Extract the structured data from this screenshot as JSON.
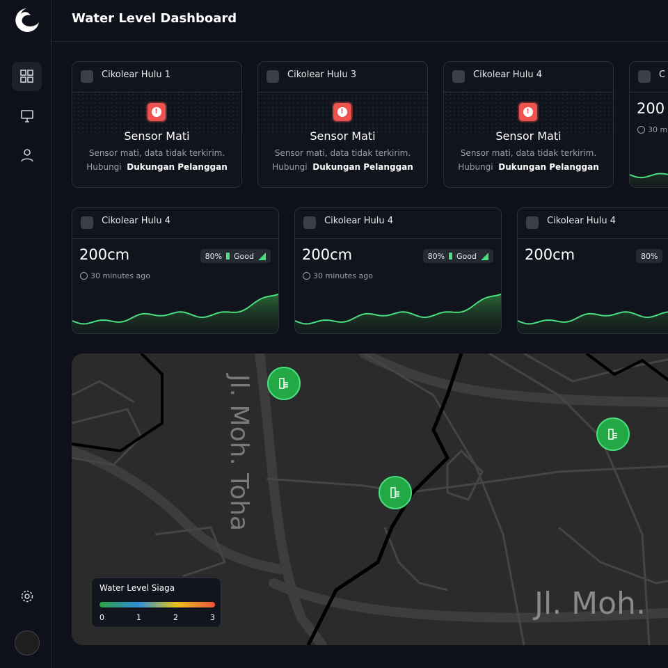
{
  "header": {
    "title": "Water Level Dashboard"
  },
  "row1": [
    {
      "name": "Cikolear Hulu 1",
      "status": "Sensor Mati",
      "message": "Sensor mati, data tidak terkirim.",
      "contact_prefix": "Hubungi",
      "contact_link": "Dukungan Pelanggan"
    },
    {
      "name": "Cikolear Hulu 3",
      "status": "Sensor Mati",
      "message": "Sensor mati, data tidak terkirim.",
      "contact_prefix": "Hubungi",
      "contact_link": "Dukungan Pelanggan"
    },
    {
      "name": "Cikolear Hulu 4",
      "status": "Sensor Mati",
      "message": "Sensor mati, data tidak terkirim.",
      "contact_prefix": "Hubungi",
      "contact_link": "Dukungan Pelanggan"
    },
    {
      "name": "C",
      "level": "200",
      "updated": "30 m"
    }
  ],
  "row2": [
    {
      "name": "Cikolear Hulu 4",
      "level": "200cm",
      "battery": "80%",
      "signal": "Good",
      "updated": "30 minutes ago"
    },
    {
      "name": "Cikolear Hulu 4",
      "level": "200cm",
      "battery": "80%",
      "signal": "Good",
      "updated": "30 minutes ago"
    },
    {
      "name": "Cikolear Hulu 4",
      "level": "200cm",
      "battery": "80%"
    }
  ],
  "map": {
    "street_labels": [
      "Jl. Moh. Toha",
      "Jl. Moh."
    ],
    "legend": {
      "title": "Water Level Siaga",
      "ticks": [
        0,
        1,
        2,
        3
      ]
    }
  }
}
